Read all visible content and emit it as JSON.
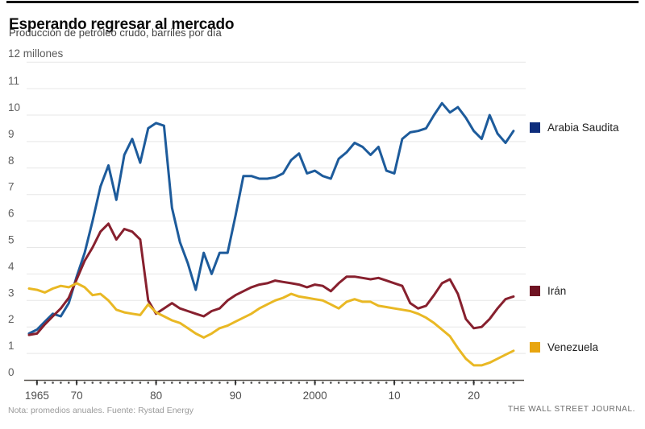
{
  "header": {
    "title": "Esperando regresar al mercado",
    "subtitle": "Producción de petróleo crudo, barriles por día"
  },
  "legend": {
    "items": [
      {
        "label": "Arabia Saudita",
        "color": "#0d2d7c"
      },
      {
        "label": "Irán",
        "color": "#6f1322"
      },
      {
        "label": "Venezuela",
        "color": "#e8a50f"
      }
    ]
  },
  "footer": {
    "note": "Nota: promedios anuales. Fuente: Rystad Energy",
    "credit": "THE WALL STREET JOURNAL."
  },
  "chart_data": {
    "type": "line",
    "title": "Esperando regresar al mercado",
    "subtitle": "Producción de petróleo crudo, barriles por día",
    "ylabel_top": "12 millones",
    "ylim": [
      0,
      12
    ],
    "grid": true,
    "legend_position": "right",
    "x": [
      1964,
      1965,
      1966,
      1967,
      1968,
      1969,
      1970,
      1971,
      1972,
      1973,
      1974,
      1975,
      1976,
      1977,
      1978,
      1979,
      1980,
      1981,
      1982,
      1983,
      1984,
      1985,
      1986,
      1987,
      1988,
      1989,
      1990,
      1991,
      1992,
      1993,
      1994,
      1995,
      1996,
      1997,
      1998,
      1999,
      2000,
      2001,
      2002,
      2003,
      2004,
      2005,
      2006,
      2007,
      2008,
      2009,
      2010,
      2011,
      2012,
      2013,
      2014,
      2015,
      2016,
      2017,
      2018,
      2019,
      2020,
      2021,
      2022,
      2023,
      2024,
      2025
    ],
    "yticks": [
      0,
      1,
      2,
      3,
      4,
      5,
      6,
      7,
      8,
      9,
      10,
      11
    ],
    "xticks": [
      {
        "year": 1965,
        "label": "1965"
      },
      {
        "year": 1970,
        "label": "70"
      },
      {
        "year": 1980,
        "label": "80"
      },
      {
        "year": 1990,
        "label": "90"
      },
      {
        "year": 2000,
        "label": "2000"
      },
      {
        "year": 2010,
        "label": "10"
      },
      {
        "year": 2020,
        "label": "20"
      }
    ],
    "series": [
      {
        "name": "Arabia Saudita",
        "color": "#1d5b9b",
        "legend_color": "#0d2d7c",
        "values": [
          1.75,
          1.9,
          2.2,
          2.5,
          2.4,
          2.9,
          3.9,
          4.8,
          6.0,
          7.3,
          8.1,
          6.8,
          8.5,
          9.1,
          8.2,
          9.5,
          9.7,
          9.6,
          6.5,
          5.2,
          4.4,
          3.4,
          4.8,
          4.0,
          4.8,
          4.8,
          6.2,
          7.7,
          7.7,
          7.6,
          7.6,
          7.65,
          7.8,
          8.3,
          8.55,
          7.8,
          7.9,
          7.7,
          7.6,
          8.35,
          8.6,
          8.95,
          8.8,
          8.5,
          8.8,
          7.9,
          7.8,
          9.1,
          9.35,
          9.4,
          9.5,
          10.0,
          10.45,
          10.1,
          10.3,
          9.9,
          9.4,
          9.1,
          10.0,
          9.3,
          8.95,
          9.4
        ]
      },
      {
        "name": "Irán",
        "color": "#87202e",
        "legend_color": "#6f1322",
        "values": [
          1.7,
          1.75,
          2.1,
          2.4,
          2.7,
          3.1,
          3.8,
          4.5,
          5.0,
          5.6,
          5.9,
          5.3,
          5.7,
          5.6,
          5.3,
          3.0,
          2.5,
          2.7,
          2.9,
          2.7,
          2.6,
          2.5,
          2.4,
          2.6,
          2.7,
          3.0,
          3.2,
          3.35,
          3.5,
          3.6,
          3.65,
          3.75,
          3.7,
          3.65,
          3.6,
          3.5,
          3.6,
          3.55,
          3.35,
          3.65,
          3.9,
          3.9,
          3.85,
          3.8,
          3.85,
          3.75,
          3.65,
          3.55,
          2.9,
          2.7,
          2.8,
          3.2,
          3.65,
          3.8,
          3.25,
          2.3,
          1.95,
          2.0,
          2.3,
          2.7,
          3.05,
          3.15
        ]
      },
      {
        "name": "Venezuela",
        "color": "#e9b824",
        "legend_color": "#e8a50f",
        "values": [
          3.45,
          3.4,
          3.3,
          3.45,
          3.55,
          3.5,
          3.65,
          3.5,
          3.2,
          3.25,
          3.0,
          2.65,
          2.55,
          2.5,
          2.45,
          2.85,
          2.55,
          2.4,
          2.25,
          2.15,
          1.95,
          1.75,
          1.6,
          1.75,
          1.95,
          2.05,
          2.2,
          2.35,
          2.5,
          2.7,
          2.85,
          3.0,
          3.1,
          3.25,
          3.15,
          3.1,
          3.05,
          3.0,
          2.85,
          2.7,
          2.95,
          3.05,
          2.95,
          2.95,
          2.8,
          2.75,
          2.7,
          2.65,
          2.6,
          2.5,
          2.35,
          2.15,
          1.9,
          1.65,
          1.2,
          0.8,
          0.55,
          0.55,
          0.65,
          0.8,
          0.95,
          1.1
        ]
      }
    ]
  }
}
